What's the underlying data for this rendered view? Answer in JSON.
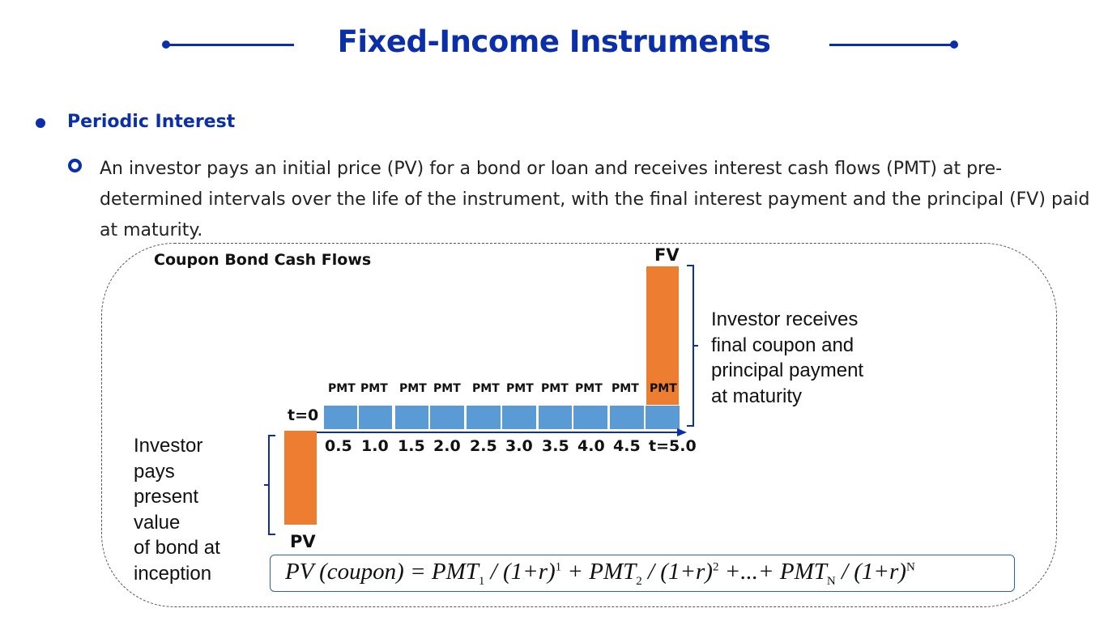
{
  "header": {
    "title": "Fixed-Income Instruments"
  },
  "section": {
    "heading": "Periodic Interest"
  },
  "body": {
    "paragraph": "An investor pays an initial price (PV) for a bond or loan and receives interest cash flows (PMT) at pre-determined intervals over the life of the instrument, with the final interest payment and the principal (FV) paid at maturity."
  },
  "diagram": {
    "title": "Coupon Bond Cash Flows",
    "fv_label": "FV",
    "pv_label": "PV",
    "t0_label": "t=0",
    "pmt_labels": [
      "PMT",
      "PMT",
      "PMT",
      "PMT",
      "PMT",
      "PMT",
      "PMT",
      "PMT",
      "PMT",
      "PMT"
    ],
    "time_labels": [
      "0.5",
      "1.0",
      "1.5",
      "2.0",
      "2.5",
      "3.0",
      "3.5",
      "4.0",
      "4.5",
      "t=5.0"
    ],
    "right_note": [
      "Investor receives",
      "final coupon and",
      "principal payment",
      "at maturity"
    ],
    "left_note": [
      "Investor",
      "pays",
      "present",
      "value",
      "of bond at",
      "inception"
    ],
    "colors": {
      "cash_outflow": "#ed7d31",
      "coupon_block": "#5b9bd5",
      "accent": "#0b2fa8"
    }
  },
  "formula": {
    "lhs": "PV (coupon) = ",
    "pmt1": "PMT",
    "sub1": "1",
    "sup1": "1",
    "pmt2": "PMT",
    "sub2": "2",
    "sup2": "2",
    "pmtN": "PMT",
    "subN": "N",
    "supN": "N",
    "paren": "(1+r)",
    "plus": " + ",
    "ellipsis": " +...+ ",
    "slash": " / "
  }
}
